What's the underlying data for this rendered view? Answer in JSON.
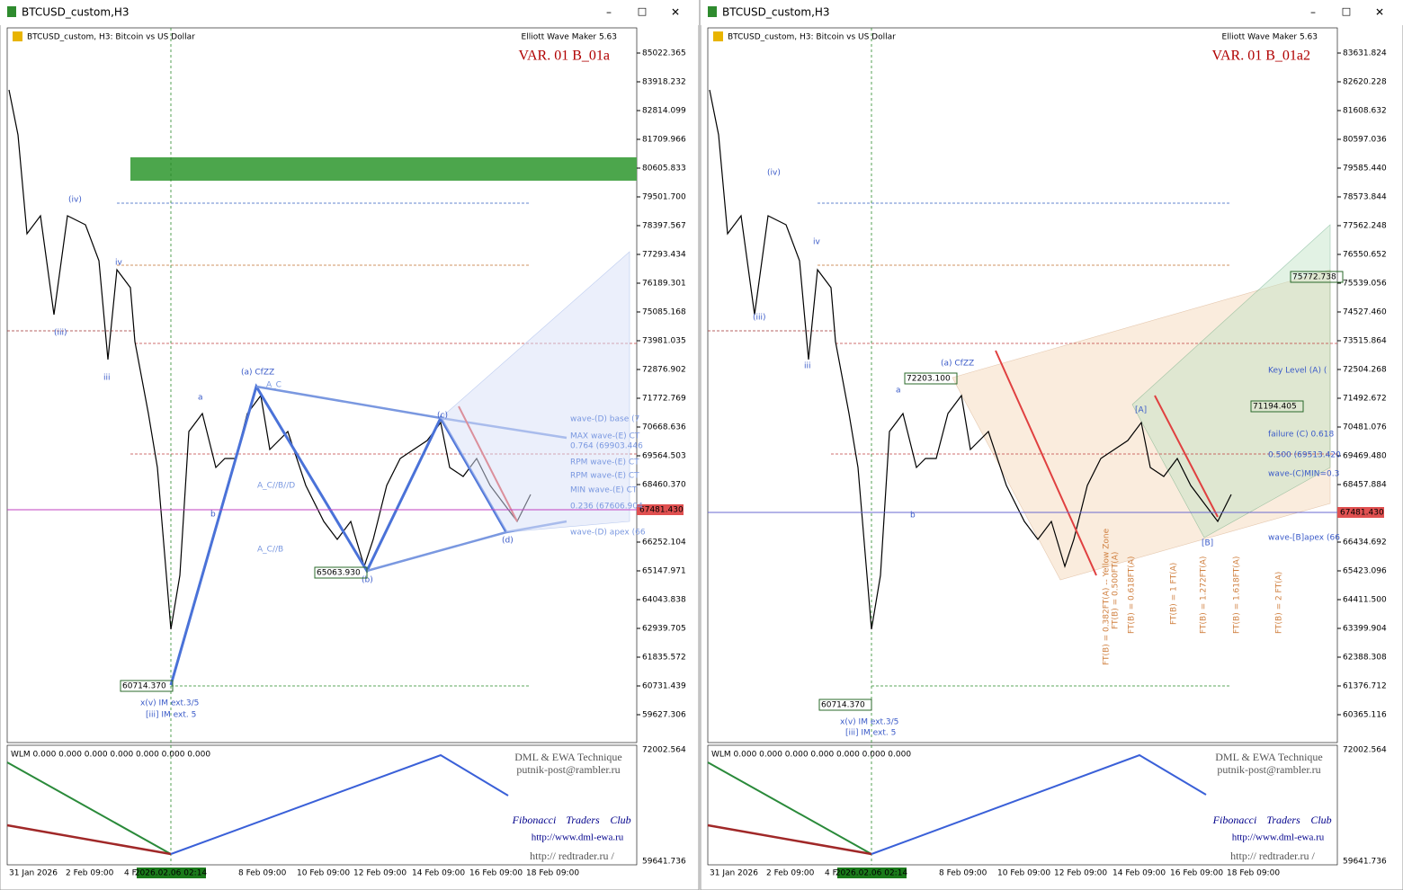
{
  "windows": [
    {
      "title": "BTCUSD_custom,H3",
      "symbol_info": "BTCUSD_custom, H3:  Bitcoin vs US Dollar",
      "indicator": "Elliott Wave Maker 5.63",
      "variant": "VAR. 01 B_01a",
      "price_labels": [
        "85022.365",
        "83918.232",
        "82814.099",
        "81709.966",
        "80605.833",
        "79501.700",
        "78397.567",
        "77293.434",
        "76189.301",
        "75085.168",
        "73981.035",
        "72876.902",
        "71772.769",
        "70668.636",
        "69564.503",
        "68460.370",
        "67356.237",
        "66252.104",
        "65147.971",
        "64043.838",
        "62939.705",
        "61835.572",
        "60731.439",
        "59627.306"
      ],
      "current_price": "67481.430",
      "indicator_labels": [
        "72002.564",
        "59641.736"
      ],
      "wlm": "WLM 0.000 0.000 0.000 0.000 0.000 0.000 0.000",
      "time_labels": [
        "31 Jan 2026",
        "2 Feb 09:00",
        "4 F",
        "8 Feb 09:00",
        "10 Feb 09:00",
        "12 Feb 09:00",
        "14 Feb 09:00",
        "16 Feb 09:00",
        "18 Feb 09:00"
      ],
      "cursor_time": "2026.02.06 02:14",
      "annotations": [
        "(a) CfZZ",
        "(b)",
        "(c)",
        "(d)",
        "60714.370",
        "65063.930",
        "x(v) IM ext.3/5",
        "[iii] IM ext. 5",
        "(iv)",
        "(iii)",
        "iv",
        "iii",
        "a",
        "b",
        "wave-(D) base (7",
        "MAX wave-(E) CT",
        "0.764 (69903.446",
        "RPM wave-(E) CT",
        "RPM wave-(E) CT",
        "MIN wave-(E) CT",
        "0.236 (67606.904",
        "wave-(D) apex (66",
        "A_C",
        "A_C//B//D",
        "A_C//B"
      ],
      "credits": [
        "DML & EWA Technique",
        "putnik-post@rambler.ru",
        "Fibonacci",
        "Traders",
        "Club",
        "http://www.dml-ewa.ru",
        "http:// redtrader.ru /"
      ]
    },
    {
      "title": "BTCUSD_custom,H3",
      "symbol_info": "BTCUSD_custom, H3:  Bitcoin vs US Dollar",
      "indicator": "Elliott Wave Maker 5.63",
      "variant": "VAR. 01 B_01a2",
      "price_labels": [
        "83631.824",
        "82620.228",
        "81608.632",
        "80597.036",
        "79585.440",
        "78573.844",
        "77562.248",
        "76550.652",
        "75539.056",
        "74527.460",
        "73515.864",
        "72504.268",
        "71492.672",
        "70481.076",
        "69469.480",
        "68457.884",
        "67446.288",
        "66434.692",
        "65423.096",
        "64411.500",
        "63399.904",
        "62388.308",
        "61376.712",
        "60365.116"
      ],
      "current_price": "67481.430",
      "indicator_labels": [
        "72002.564",
        "59641.736"
      ],
      "wlm": "WLM 0.000 0.000 0.000 0.000 0.000 0.000 0.000",
      "time_labels": [
        "31 Jan 2026",
        "2 Feb 09:00",
        "4 F",
        "8 Feb 09:00",
        "10 Feb 09:00",
        "12 Feb 09:00",
        "14 Feb 09:00",
        "16 Feb 09:00",
        "18 Feb 09:00"
      ],
      "cursor_time": "2026.02.06 02:14",
      "annotations": [
        "(a) CfZZ",
        "[A]",
        "[B]",
        "a",
        "b",
        "60714.370",
        "72203.100",
        "x(v) IM ext.3/5",
        "[iii] IM ext. 5",
        "(iv)",
        "(iii)",
        "iv",
        "iii",
        "75772.738",
        "71194.405",
        "failure (C) 0.618",
        "0.500 (69513.420",
        "wave-(C)MIN=0.3",
        "wave-[B]apex (66",
        "Key Level (A) (",
        "FT(B) = 0.382FT(A) -- Yellow Zone",
        "FT(B) = 0.500FT(A)",
        "FT(B) = 0.618FT(A)",
        "FT(B) = 1 FT(A)",
        "FT(B) = 1.272FT(A)",
        "FT(B) = 1.618FT(A)",
        "FT(B) = 2 FT(A)"
      ],
      "credits": [
        "DML & EWA Technique",
        "putnik-post@rambler.ru",
        "Fibonacci",
        "Traders",
        "Club",
        "http://www.dml-ewa.ru",
        "http:// redtrader.ru /"
      ]
    }
  ]
}
